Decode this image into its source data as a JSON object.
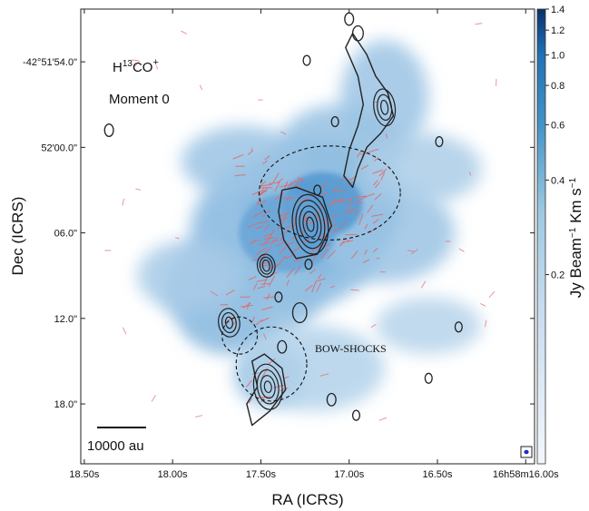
{
  "chart_data": {
    "type": "heatmap",
    "title": "",
    "image_label_species": "H",
    "image_label_sup": "13",
    "image_label_rest": "CO",
    "image_label_charge": "+",
    "image_label_map": "Moment 0",
    "xlabel": "RA (ICRS)",
    "ylabel": "Dec (ICRS)",
    "x_ticks": [
      {
        "value": 18.5,
        "label": "18.50s"
      },
      {
        "value": 18.0,
        "label": "18.00s"
      },
      {
        "value": 17.5,
        "label": "17.50s"
      },
      {
        "value": 17.0,
        "label": "17.00s"
      },
      {
        "value": 16.5,
        "label": "16.50s"
      },
      {
        "value": 16.0,
        "label": "16h58m16.00s"
      }
    ],
    "y_ticks": [
      {
        "value": -54,
        "label": "-42°51'54.0\""
      },
      {
        "value": -60,
        "label": "52'00.0\""
      },
      {
        "value": -66,
        "label": "06.0\""
      },
      {
        "value": -72,
        "label": "12.0\""
      },
      {
        "value": -78,
        "label": "18.0\""
      }
    ],
    "xlim": [
      18.52,
      15.95
    ],
    "ylim": [
      -50.3,
      -82.2
    ],
    "colorbar": {
      "label_main": "Jy Beam",
      "label_exp1": "−1",
      "label_mid": " Km s",
      "label_exp2": "−1",
      "scale": "log",
      "range": [
        0.05,
        1.4
      ],
      "ticks": [
        1.4,
        1.2,
        1.0,
        0.8,
        0.6,
        0.4,
        0.2
      ],
      "tick_labels": [
        "1.4",
        "1.2",
        "1.0",
        "0.8",
        "0.6",
        "0.4",
        "0.2"
      ]
    },
    "scalebar_label": "10000 au",
    "annotations": [
      "BOW-SHOCKS"
    ],
    "colors": {
      "emission": "#4a90c8",
      "contours": "#222222",
      "vectors": "#e06a6a",
      "beam": "#1530c8"
    },
    "emission_blobs": [
      {
        "ra": 17.2,
        "dec": -65.5,
        "w": 0.2,
        "h": 3.5,
        "level": 0.9
      },
      {
        "ra": 17.15,
        "dec": -64.0,
        "w": 0.45,
        "h": 4.5,
        "level": 0.6
      },
      {
        "ra": 17.35,
        "dec": -66.0,
        "w": 0.55,
        "h": 5.5,
        "level": 0.45
      },
      {
        "ra": 17.05,
        "dec": -60.0,
        "w": 0.35,
        "h": 3.0,
        "level": 0.35
      },
      {
        "ra": 17.6,
        "dec": -61.0,
        "w": 0.35,
        "h": 2.5,
        "level": 0.3
      },
      {
        "ra": 17.6,
        "dec": -70.0,
        "w": 0.45,
        "h": 4.0,
        "level": 0.35
      },
      {
        "ra": 16.8,
        "dec": -56.5,
        "w": 0.25,
        "h": 4.0,
        "level": 0.3
      },
      {
        "ra": 16.8,
        "dec": -66.0,
        "w": 0.4,
        "h": 3.5,
        "level": 0.3
      },
      {
        "ra": 17.7,
        "dec": -72.0,
        "w": 0.25,
        "h": 2.5,
        "level": 0.35
      },
      {
        "ra": 17.45,
        "dec": -76.0,
        "w": 0.2,
        "h": 2.2,
        "level": 0.35
      },
      {
        "ra": 16.6,
        "dec": -61.5,
        "w": 0.35,
        "h": 2.5,
        "level": 0.2
      },
      {
        "ra": 17.9,
        "dec": -69.0,
        "w": 0.3,
        "h": 2.5,
        "level": 0.22
      },
      {
        "ra": 17.2,
        "dec": -75.5,
        "w": 0.4,
        "h": 3.0,
        "level": 0.15
      },
      {
        "ra": 16.55,
        "dec": -72.5,
        "w": 0.3,
        "h": 2.0,
        "level": 0.12
      }
    ],
    "contour_sources": [
      {
        "ra": 17.22,
        "dec": -65.4,
        "rx": [
          0.02,
          0.04,
          0.06,
          0.08,
          0.1
        ],
        "ry": [
          0.5,
          0.9,
          1.3,
          1.7,
          2.1
        ]
      },
      {
        "ra": 17.47,
        "dec": -68.3,
        "rx": [
          0.02,
          0.035,
          0.05
        ],
        "ry": [
          0.4,
          0.6,
          0.8
        ]
      },
      {
        "ra": 17.68,
        "dec": -72.3,
        "rx": [
          0.02,
          0.04,
          0.06
        ],
        "ry": [
          0.4,
          0.7,
          1.0
        ]
      },
      {
        "ra": 17.46,
        "dec": -76.8,
        "rx": [
          0.02,
          0.04,
          0.06,
          0.08
        ],
        "ry": [
          0.4,
          0.8,
          1.2,
          1.6
        ]
      },
      {
        "ra": 16.8,
        "dec": -57.2,
        "rx": [
          0.02,
          0.04,
          0.06
        ],
        "ry": [
          0.5,
          0.9,
          1.3
        ]
      }
    ],
    "jet_contours": [
      [
        [
          16.98,
          -52.0
        ],
        [
          16.9,
          -53.5
        ],
        [
          16.85,
          -55.0
        ],
        [
          16.78,
          -56.2
        ],
        [
          16.75,
          -57.8
        ],
        [
          16.82,
          -59.0
        ],
        [
          16.9,
          -60.0
        ],
        [
          16.95,
          -61.5
        ],
        [
          16.98,
          -62.8
        ],
        [
          17.03,
          -62.0
        ],
        [
          17.0,
          -60.2
        ],
        [
          16.95,
          -58.5
        ],
        [
          16.92,
          -57.0
        ],
        [
          16.95,
          -55.0
        ],
        [
          17.02,
          -53.0
        ],
        [
          16.98,
          -52.0
        ]
      ],
      [
        [
          17.55,
          -75.0
        ],
        [
          17.48,
          -74.5
        ],
        [
          17.38,
          -75.5
        ],
        [
          17.36,
          -77.0
        ],
        [
          17.45,
          -78.5
        ],
        [
          17.55,
          -79.5
        ],
        [
          17.58,
          -78.0
        ],
        [
          17.52,
          -76.8
        ],
        [
          17.55,
          -75.0
        ]
      ],
      [
        [
          17.38,
          -63.0
        ],
        [
          17.3,
          -62.8
        ],
        [
          17.15,
          -63.5
        ],
        [
          17.1,
          -65.5
        ],
        [
          17.18,
          -67.5
        ],
        [
          17.3,
          -67.8
        ],
        [
          17.37,
          -66.5
        ],
        [
          17.4,
          -64.5
        ],
        [
          17.38,
          -63.0
        ]
      ]
    ],
    "small_contours": [
      {
        "ra": 17.0,
        "dec": -51.0,
        "r": 0.05
      },
      {
        "ra": 16.95,
        "dec": -52.0,
        "r": 0.06
      },
      {
        "ra": 18.36,
        "dec": -58.8,
        "r": 0.05
      },
      {
        "ra": 17.24,
        "dec": -53.9,
        "r": 0.04
      },
      {
        "ra": 17.08,
        "dec": -58.2,
        "r": 0.04
      },
      {
        "ra": 16.49,
        "dec": -59.6,
        "r": 0.04
      },
      {
        "ra": 17.23,
        "dec": -68.2,
        "r": 0.04
      },
      {
        "ra": 17.28,
        "dec": -71.6,
        "r": 0.08
      },
      {
        "ra": 17.18,
        "dec": -63.0,
        "r": 0.04
      },
      {
        "ra": 17.4,
        "dec": -70.5,
        "r": 0.04
      },
      {
        "ra": 17.1,
        "dec": -77.7,
        "r": 0.05
      },
      {
        "ra": 16.96,
        "dec": -78.8,
        "r": 0.04
      },
      {
        "ra": 16.55,
        "dec": -76.2,
        "r": 0.04
      },
      {
        "ra": 16.38,
        "dec": -72.6,
        "r": 0.04
      },
      {
        "ra": 17.38,
        "dec": -74.0,
        "r": 0.05
      }
    ],
    "bow_shocks": [
      {
        "ra": 17.11,
        "dec": -63.2,
        "rx": 0.4,
        "ry": 3.3
      },
      {
        "ra": 17.44,
        "dec": -75.2,
        "rx": 0.2,
        "ry": 2.6
      },
      {
        "ra": 17.62,
        "dec": -73.2,
        "rx": 0.1,
        "ry": 1.3
      }
    ],
    "vector_regions": [
      {
        "ra": 17.2,
        "dec": -65.0,
        "w": 0.35,
        "h": 3.0,
        "n": 90
      },
      {
        "ra": 17.35,
        "dec": -68.0,
        "w": 0.2,
        "h": 2.0,
        "n": 30
      },
      {
        "ra": 17.0,
        "dec": -64.0,
        "w": 0.2,
        "h": 2.0,
        "n": 25
      },
      {
        "ra": 17.6,
        "dec": -71.5,
        "w": 0.15,
        "h": 1.5,
        "n": 14
      },
      {
        "ra": 17.45,
        "dec": -76.5,
        "w": 0.12,
        "h": 1.5,
        "n": 10
      },
      {
        "ra": 17.55,
        "dec": -61.0,
        "w": 0.1,
        "h": 1.0,
        "n": 6
      },
      {
        "ra": 16.9,
        "dec": -61.2,
        "w": 0.12,
        "h": 1.0,
        "n": 8
      }
    ]
  }
}
